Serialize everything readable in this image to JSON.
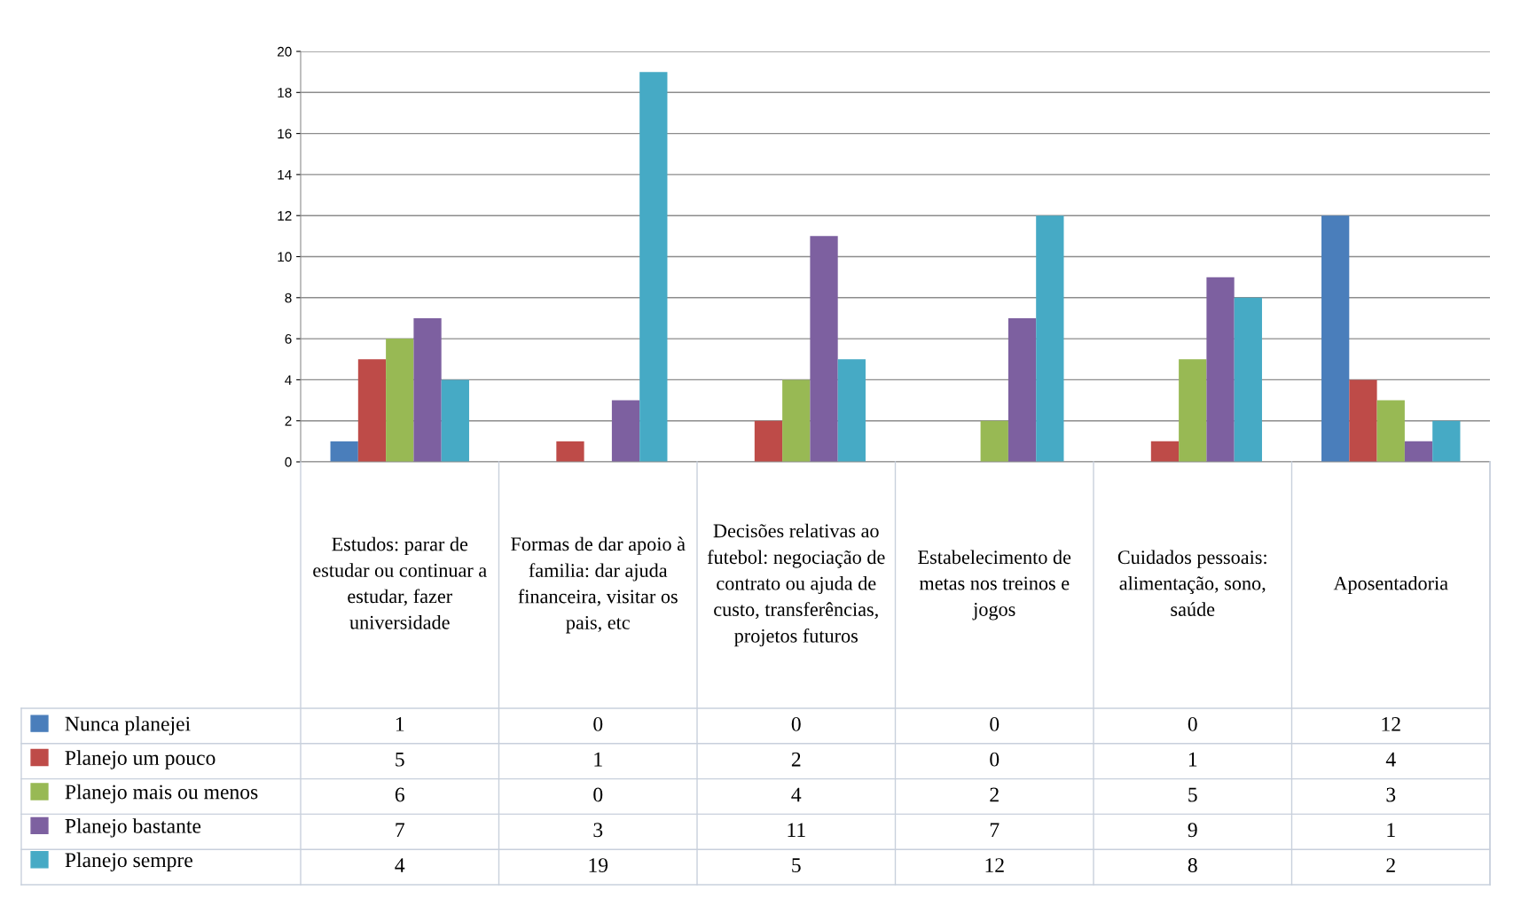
{
  "chart_data": {
    "type": "bar",
    "categories": [
      "Estudos: parar de estudar ou continuar a estudar, fazer universidade",
      "Formas de dar apoio à familia: dar ajuda financeira, visitar os pais, etc",
      "Decisões relativas ao futebol: negociação de contrato ou ajuda de custo, transferências, projetos futuros",
      "Estabelecimento de metas nos treinos e jogos",
      "Cuidados pessoais: alimentação, sono, saúde",
      "Aposentadoria"
    ],
    "series": [
      {
        "name": "Nunca planejei",
        "color": "#4a7ebb",
        "values": [
          1,
          0,
          0,
          0,
          0,
          12
        ]
      },
      {
        "name": "Planejo um pouco",
        "color": "#be4b48",
        "values": [
          5,
          1,
          2,
          0,
          1,
          4
        ]
      },
      {
        "name": "Planejo mais ou menos",
        "color": "#98b954",
        "values": [
          6,
          0,
          4,
          2,
          5,
          3
        ]
      },
      {
        "name": "Planejo bastante",
        "color": "#7d60a0",
        "values": [
          7,
          3,
          11,
          7,
          9,
          1
        ]
      },
      {
        "name": "Planejo sempre",
        "color": "#46aac5",
        "values": [
          4,
          19,
          5,
          12,
          8,
          2
        ]
      }
    ],
    "ylim": [
      0,
      20
    ],
    "yticks": [
      0,
      2,
      4,
      6,
      8,
      10,
      12,
      14,
      16,
      18,
      20
    ],
    "grid": "y",
    "legend": "left",
    "data_labels": true
  }
}
